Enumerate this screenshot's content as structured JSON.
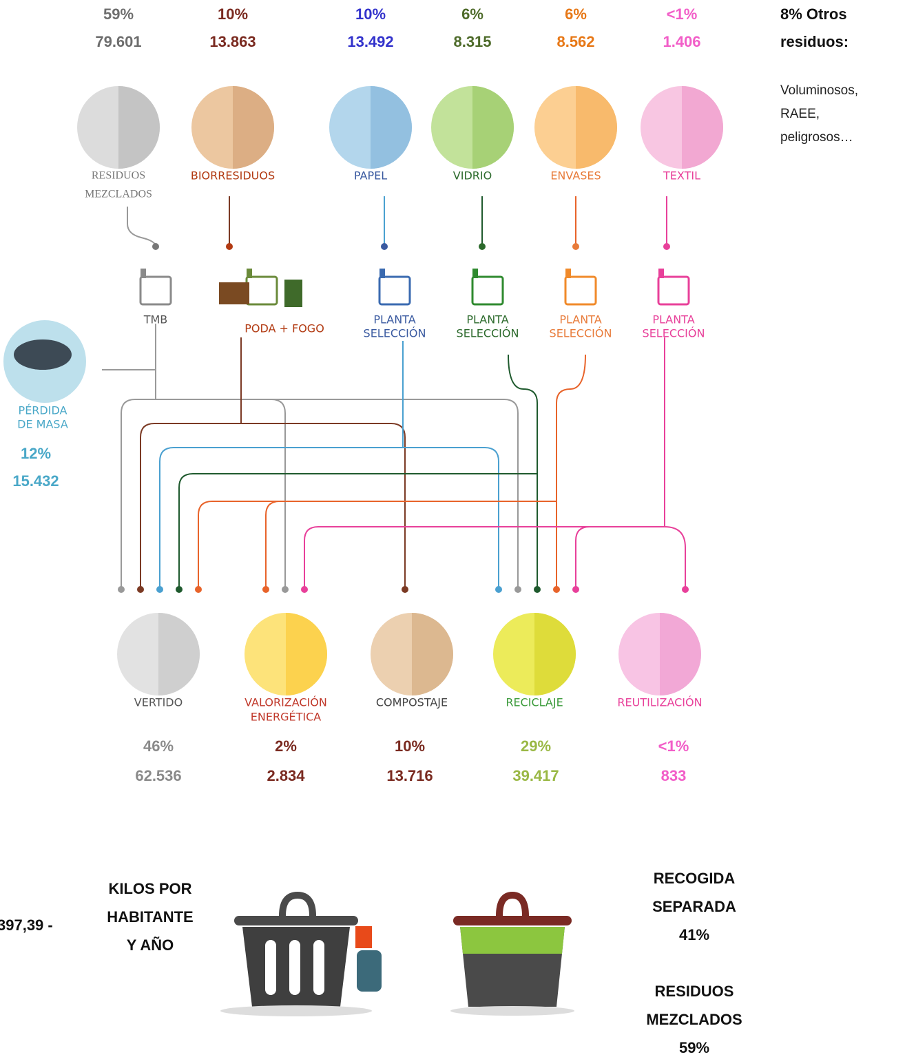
{
  "sources": [
    {
      "percent": "59%",
      "amount": "79.601",
      "label": [
        "RESIDUOS",
        "MEZCLADOS"
      ],
      "plant": [
        "TMB"
      ]
    },
    {
      "percent": "10%",
      "amount": "13.863",
      "label": [
        "BIORRESIDUOS"
      ],
      "plant": [
        "PODA + FOGO"
      ]
    },
    {
      "percent": "10%",
      "amount": "13.492",
      "label": [
        "PAPEL"
      ],
      "plant": [
        "PLANTA",
        "SELECCIÓN"
      ]
    },
    {
      "percent": "6%",
      "amount": "8.315",
      "label": [
        "VIDRIO"
      ],
      "plant": [
        "PLANTA",
        "SELECCIÓN"
      ]
    },
    {
      "percent": "6%",
      "amount": "8.562",
      "label": [
        "ENVASES"
      ],
      "plant": [
        "PLANTA",
        "SELECCIÓN"
      ]
    },
    {
      "percent": "<1%",
      "amount": "1.406",
      "label": [
        "TEXTIL"
      ],
      "plant": [
        "PLANTA",
        "SELECCIÓN"
      ]
    }
  ],
  "other": {
    "title": [
      "8% Otros",
      "residuos:"
    ],
    "text": [
      "Voluminosos,",
      "RAEE,",
      "peligrosos…"
    ]
  },
  "loss": {
    "label": [
      "PÉRDIDA",
      "DE MASA"
    ],
    "percent": "12%",
    "amount": "15.432"
  },
  "destinations": [
    {
      "label": [
        "VERTIDO"
      ],
      "percent": "46%",
      "amount": "62.536"
    },
    {
      "label": [
        "VALORIZACIÓN",
        "ENERGÉTICA"
      ],
      "percent": "2%",
      "amount": "2.834"
    },
    {
      "label": [
        "COMPOSTAJE"
      ],
      "percent": "10%",
      "amount": "13.716"
    },
    {
      "label": [
        "RECICLAJE"
      ],
      "percent": "29%",
      "amount": "39.417"
    },
    {
      "label": [
        "REUTILIZACIÓN"
      ],
      "percent": "<1%",
      "amount": "833"
    }
  ],
  "summary": {
    "total": "397,39 -",
    "unit": [
      "KILOS POR",
      "HABITANTE",
      "Y AÑO"
    ],
    "separate": [
      "RECOGIDA",
      "SEPARADA",
      "41%"
    ],
    "mixed": [
      "RESIDUOS",
      "MEZCLADOS",
      "59%"
    ]
  }
}
